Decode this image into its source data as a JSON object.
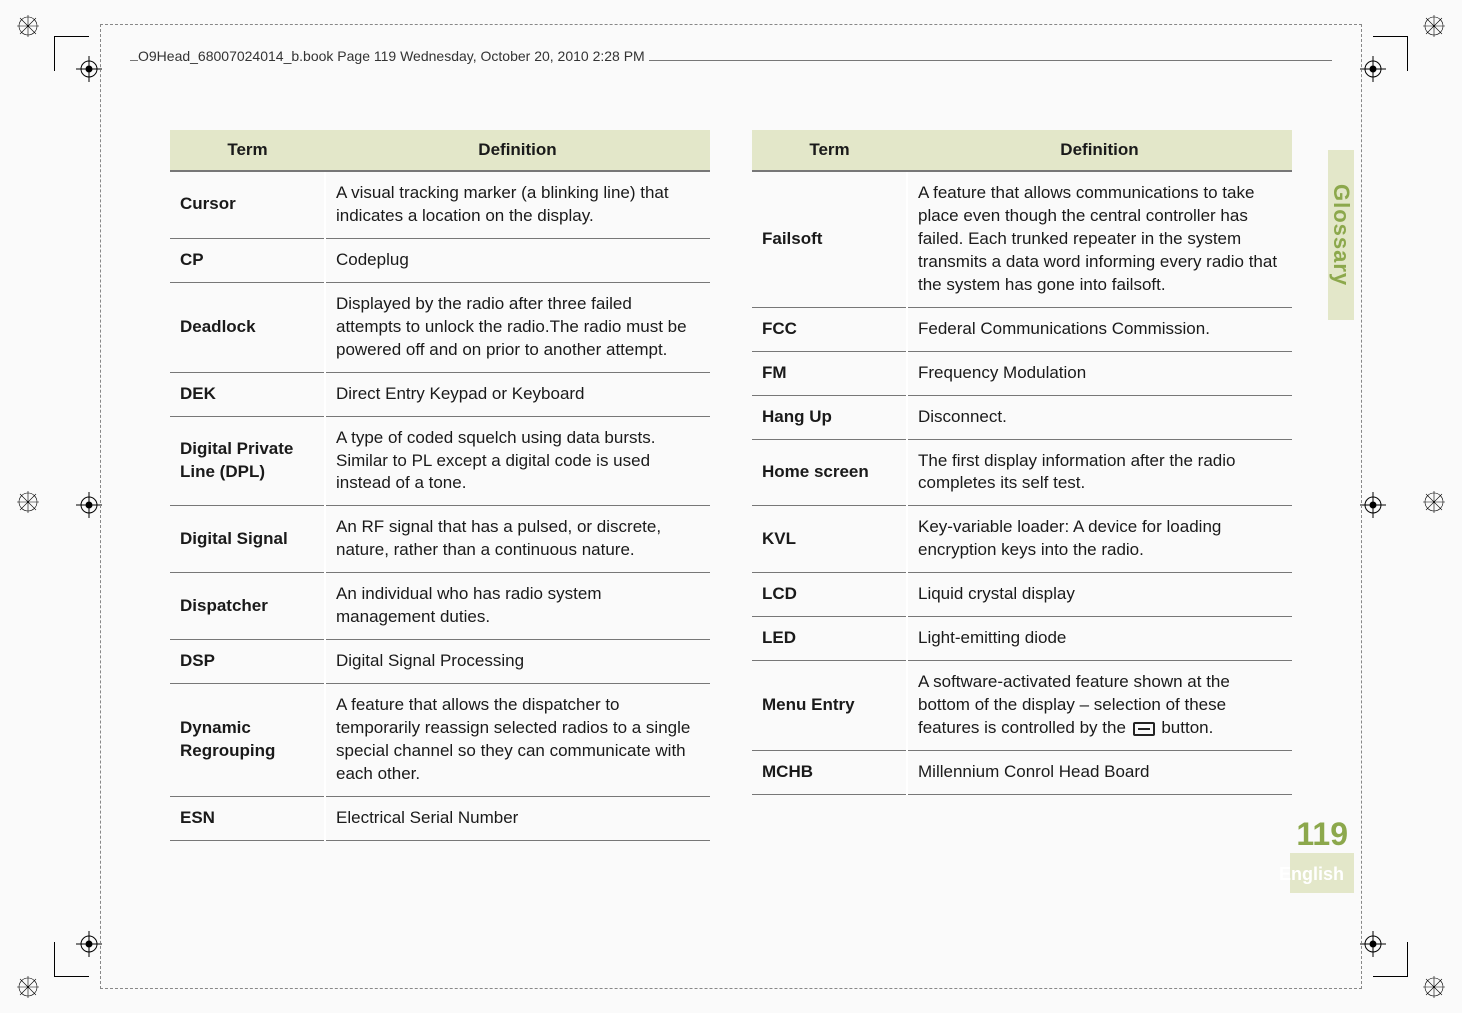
{
  "header": {
    "running_head": "O9Head_68007024014_b.book  Page 119  Wednesday, October 20, 2010  2:28 PM"
  },
  "side_tab": {
    "label": "Glossary"
  },
  "footer": {
    "page_number": "119",
    "language": "English"
  },
  "tables": {
    "term_header": "Term",
    "definition_header": "Definition",
    "left_rows": [
      {
        "term": "Cursor",
        "definition": "A visual tracking marker (a blinking line) that indicates a location on the display."
      },
      {
        "term": "CP",
        "definition": "Codeplug"
      },
      {
        "term": "Deadlock",
        "definition": "Displayed by the radio after three failed attempts to unlock the radio.The radio must be powered off and on prior to another attempt."
      },
      {
        "term": "DEK",
        "definition": "Direct Entry Keypad or Keyboard"
      },
      {
        "term": "Digital Private Line (DPL)",
        "definition": "A type of coded squelch using data bursts. Similar to PL except a digital code is used instead of a tone."
      },
      {
        "term": "Digital Signal",
        "definition": "An RF signal that has a pulsed, or discrete, nature, rather than a continuous nature."
      },
      {
        "term": "Dispatcher",
        "definition": "An individual who has radio system management duties."
      },
      {
        "term": "DSP",
        "definition": "Digital Signal Processing"
      },
      {
        "term": "Dynamic Regrouping",
        "definition": "A feature that allows the dispatcher to temporarily reassign selected radios to a single special channel so they can communicate with each other."
      },
      {
        "term": "ESN",
        "definition": "Electrical Serial Number"
      }
    ],
    "right_rows": [
      {
        "term": "Failsoft",
        "definition": "A feature that allows communications to take place even though the central controller has failed. Each trunked repeater in the system transmits a data word informing every radio that the system has gone into failsoft."
      },
      {
        "term": "FCC",
        "definition": "Federal Communications Commission."
      },
      {
        "term": "FM",
        "definition": "Frequency Modulation"
      },
      {
        "term": "Hang Up",
        "definition": "Disconnect."
      },
      {
        "term": "Home screen",
        "definition": "The first display information after the radio completes its self test."
      },
      {
        "term": "KVL",
        "definition": "Key-variable loader: A device for loading encryption keys into the radio."
      },
      {
        "term": "LCD",
        "definition": "Liquid crystal display"
      },
      {
        "term": "LED",
        "definition": "Light-emitting diode"
      },
      {
        "term": "Menu Entry",
        "definition_pre": "A software-activated feature shown at the bottom of the display – selection of these features is controlled by the ",
        "definition_post": " button.",
        "has_menu_icon": true
      },
      {
        "term": "MCHB",
        "definition": "Millennium Conrol Head Board"
      }
    ]
  },
  "colors": {
    "accent_bg": "#e3e7c9",
    "accent_text": "#8ca84c",
    "rule": "#777777"
  }
}
